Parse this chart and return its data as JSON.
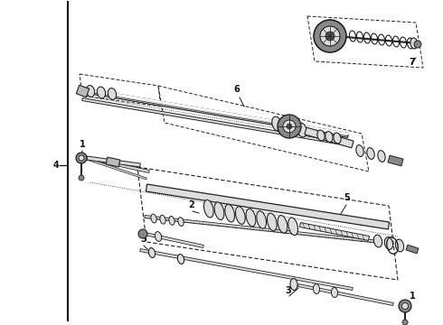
{
  "bg_color": "#ffffff",
  "border_color": "#111111",
  "line_color": "#222222",
  "gray_dark": "#555555",
  "gray_mid": "#888888",
  "gray_light": "#bbbbbb",
  "gray_fill": "#dddddd",
  "label_4": "4",
  "label_1a": "1",
  "label_1b": "1",
  "label_2": "2",
  "label_3a": "3",
  "label_3b": "3",
  "label_5": "5",
  "label_6": "6",
  "label_7": "7",
  "fig_width": 4.9,
  "fig_height": 3.6,
  "dpi": 100
}
